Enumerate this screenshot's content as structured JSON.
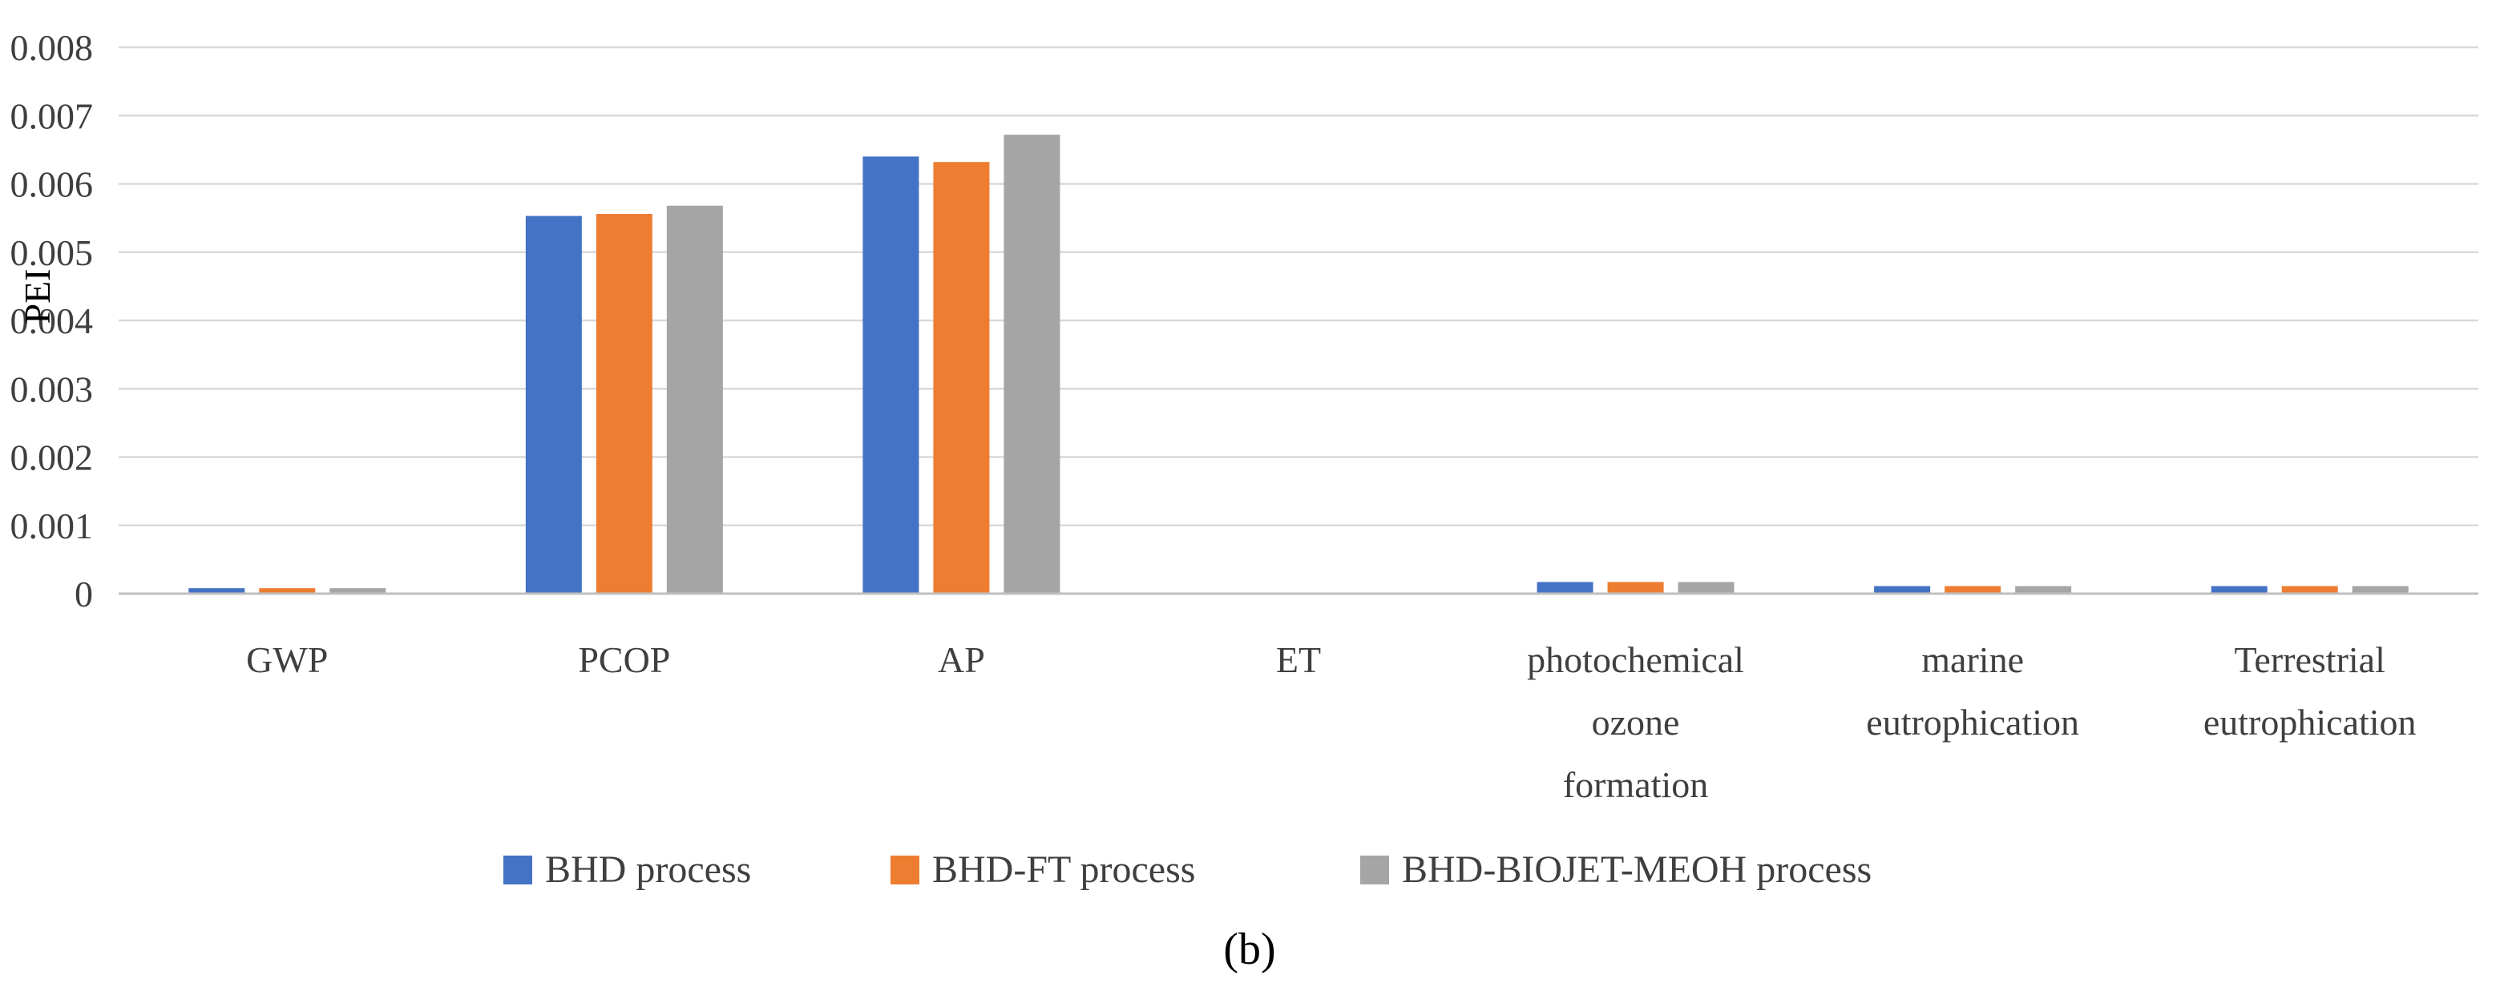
{
  "chart_data": {
    "type": "bar",
    "title": "",
    "xlabel": "",
    "ylabel": "PEI",
    "ylim": [
      0,
      0.008
    ],
    "yticks": [
      "0",
      "0.001",
      "0.002",
      "0.003",
      "0.004",
      "0.005",
      "0.006",
      "0.007",
      "0.008"
    ],
    "grid": true,
    "legend_position": "bottom",
    "categories": [
      [
        "GWP"
      ],
      [
        "PCOP"
      ],
      [
        "AP"
      ],
      [
        "ET"
      ],
      [
        "photochemical",
        "ozone",
        "formation"
      ],
      [
        "marine",
        "eutrophication"
      ],
      [
        "Terrestrial",
        "eutrophication"
      ]
    ],
    "series": [
      {
        "name": "BHD process",
        "color": "#4472c4",
        "values": [
          8e-05,
          0.00553,
          0.0064,
          0.0,
          0.00017,
          0.00011,
          0.00011
        ]
      },
      {
        "name": "BHD-FT process",
        "color": "#ed7d31",
        "values": [
          8e-05,
          0.00556,
          0.00632,
          0.0,
          0.00017,
          0.00011,
          0.00011
        ]
      },
      {
        "name": "BHD-BIOJET-MEOH process",
        "color": "#a5a5a5",
        "values": [
          8e-05,
          0.00568,
          0.00672,
          0.0,
          0.00017,
          0.00011,
          0.00011
        ]
      }
    ],
    "caption": "(b)"
  }
}
